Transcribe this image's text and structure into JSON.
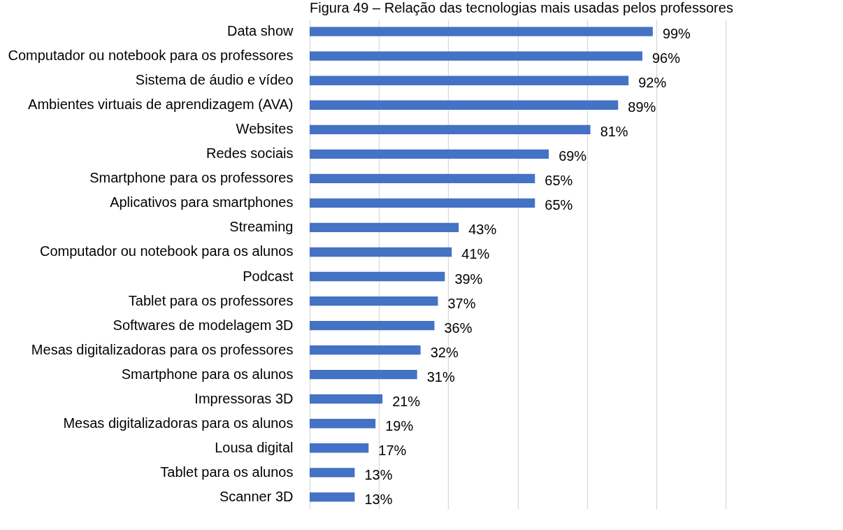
{
  "chart_data": {
    "type": "bar",
    "orientation": "horizontal",
    "title": "Figura 49 – Relação das tecnologias mais usadas pelos professores",
    "categories": [
      "Data show",
      "Computador ou notebook para os professores",
      "Sistema de áudio e vídeo",
      "Ambientes virtuais de aprendizagem (AVA)",
      "Websites",
      "Redes sociais",
      "Smartphone para os professores",
      "Aplicativos para smartphones",
      "Streaming",
      "Computador ou notebook para os alunos",
      "Podcast",
      "Tablet para os professores",
      "Softwares de modelagem 3D",
      "Mesas digitalizadoras para os professores",
      "Smartphone para os alunos",
      "Impressoras 3D",
      "Mesas digitalizadoras para os alunos",
      "Lousa digital",
      "Tablet para os alunos",
      "Scanner 3D"
    ],
    "values": [
      99,
      96,
      92,
      89,
      81,
      69,
      65,
      65,
      43,
      41,
      39,
      37,
      36,
      32,
      31,
      21,
      19,
      17,
      13,
      13
    ],
    "value_labels": [
      "99%",
      "96%",
      "92%",
      "89%",
      "81%",
      "69%",
      "65%",
      "65%",
      "43%",
      "41%",
      "39%",
      "37%",
      "36%",
      "32%",
      "31%",
      "21%",
      "19%",
      "17%",
      "13%",
      "13%"
    ],
    "color": "#4472c4",
    "xlim": [
      0,
      120
    ],
    "xticks": [
      {
        "value": 0,
        "label": null
      },
      {
        "value": 20,
        "label": null
      },
      {
        "value": 40,
        "label": null
      },
      {
        "value": 60,
        "label": null
      },
      {
        "value": 80,
        "label": null
      },
      {
        "value": 100,
        "label": null
      },
      {
        "value": 120,
        "label": null
      }
    ],
    "grid": "x",
    "tick_labels": "y"
  }
}
